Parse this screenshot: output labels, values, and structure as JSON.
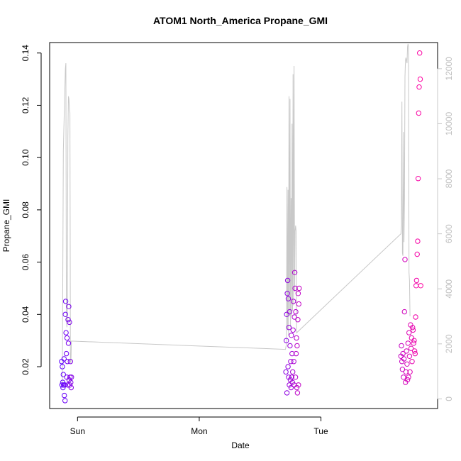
{
  "chart_data": {
    "type": "scatter",
    "title": "ATOM1 North_America Propane_GMI",
    "xlabel": "Date",
    "ylabel": "Propane_GMI",
    "x_ticks": [
      "Sun",
      "Mon",
      "Tue"
    ],
    "ylim": [
      0.004,
      0.144
    ],
    "y_ticks": [
      0.02,
      0.04,
      0.06,
      0.08,
      0.1,
      0.12,
      0.14
    ],
    "y_tick_labels": [
      "0.02",
      "0.04",
      "0.06",
      "0.08",
      "0.10",
      "0.12",
      "0.14"
    ],
    "y2lim": [
      -350,
      12950
    ],
    "y2_ticks": [
      0,
      2000,
      4000,
      6000,
      8000,
      10000,
      12000
    ],
    "y2_tick_labels": [
      "0",
      "2000",
      "4000",
      "6000",
      "8000",
      "10000",
      "12000"
    ],
    "y2_color": "#c8c8c8",
    "grid": false,
    "marker": "open-circle",
    "point_color_start": "#5c00ff",
    "point_color_end": "#ff00a0",
    "x_domain": [
      "Sat 18:30",
      "Tue 23:00"
    ],
    "series": [
      {
        "axis": "left",
        "points": [
          [
            "Sat 20:52",
            0.022
          ],
          [
            "Sat 20:56",
            0.013
          ],
          [
            "Sat 21:00",
            0.02
          ],
          [
            "Sat 21:04",
            0.014
          ],
          [
            "Sat 21:08",
            0.012
          ],
          [
            "Sat 21:12",
            0.017
          ],
          [
            "Sat 21:16",
            0.013
          ],
          [
            "Sat 21:20",
            0.023
          ],
          [
            "Sat 21:24",
            0.009
          ],
          [
            "Sat 21:28",
            0.013
          ],
          [
            "Sat 21:32",
            0.007
          ],
          [
            "Sat 21:36",
            0.04
          ],
          [
            "Sat 21:40",
            0.045
          ],
          [
            "Sat 21:44",
            0.033
          ],
          [
            "Sat 21:48",
            0.025
          ],
          [
            "Sat 21:52",
            0.016
          ],
          [
            "Sat 21:56",
            0.031
          ],
          [
            "Sat 22:00",
            0.022
          ],
          [
            "Sat 22:04",
            0.013
          ],
          [
            "Sat 22:08",
            0.038
          ],
          [
            "Sat 22:12",
            0.029
          ],
          [
            "Sat 22:16",
            0.043
          ],
          [
            "Sat 22:20",
            0.015
          ],
          [
            "Sat 22:24",
            0.037
          ],
          [
            "Sat 22:28",
            0.013
          ],
          [
            "Sat 22:32",
            0.016
          ],
          [
            "Sat 22:36",
            0.022
          ],
          [
            "Sat 22:40",
            0.014
          ],
          [
            "Sat 22:44",
            0.012
          ],
          [
            "Sat 22:48",
            0.016
          ],
          [
            "Mon 17:05",
            0.018
          ],
          [
            "Mon 17:10",
            0.03
          ],
          [
            "Mon 17:14",
            0.04
          ],
          [
            "Mon 17:18",
            0.01
          ],
          [
            "Mon 17:22",
            0.048
          ],
          [
            "Mon 17:26",
            0.053
          ],
          [
            "Mon 17:30",
            0.02
          ],
          [
            "Mon 17:34",
            0.046
          ],
          [
            "Mon 17:38",
            0.016
          ],
          [
            "Mon 17:42",
            0.035
          ],
          [
            "Mon 17:46",
            0.013
          ],
          [
            "Mon 17:50",
            0.041
          ],
          [
            "Mon 17:54",
            0.028
          ],
          [
            "Mon 17:58",
            0.015
          ],
          [
            "Mon 18:02",
            0.022
          ],
          [
            "Mon 18:06",
            0.012
          ],
          [
            "Mon 18:10",
            0.032
          ],
          [
            "Mon 18:14",
            0.016
          ],
          [
            "Mon 18:18",
            0.025
          ],
          [
            "Mon 18:22",
            0.014
          ],
          [
            "Mon 18:26",
            0.018
          ],
          [
            "Mon 18:30",
            0.034
          ],
          [
            "Mon 18:34",
            0.045
          ],
          [
            "Mon 18:38",
            0.022
          ],
          [
            "Mon 18:42",
            0.013
          ],
          [
            "Mon 18:46",
            0.039
          ],
          [
            "Mon 18:50",
            0.056
          ],
          [
            "Mon 18:54",
            0.05
          ],
          [
            "Mon 18:58",
            0.016
          ],
          [
            "Mon 19:02",
            0.041
          ],
          [
            "Mon 19:06",
            0.025
          ],
          [
            "Mon 19:10",
            0.031
          ],
          [
            "Mon 19:14",
            0.012
          ],
          [
            "Mon 19:18",
            0.028
          ],
          [
            "Mon 19:22",
            0.01
          ],
          [
            "Mon 19:26",
            0.038
          ],
          [
            "Mon 19:30",
            0.048
          ],
          [
            "Mon 19:34",
            0.013
          ],
          [
            "Mon 19:38",
            0.044
          ],
          [
            "Mon 19:42",
            0.05
          ],
          [
            "Tue 15:46",
            0.024
          ],
          [
            "Tue 15:52",
            0.028
          ],
          [
            "Tue 15:58",
            0.022
          ],
          [
            "Tue 16:04",
            0.019
          ],
          [
            "Tue 16:10",
            0.025
          ],
          [
            "Tue 16:16",
            0.016
          ],
          [
            "Tue 16:22",
            0.023
          ],
          [
            "Tue 16:28",
            0.041
          ],
          [
            "Tue 16:34",
            0.061
          ],
          [
            "Tue 16:40",
            0.014
          ],
          [
            "Tue 16:46",
            0.018
          ],
          [
            "Tue 16:52",
            0.026
          ],
          [
            "Tue 16:58",
            0.021
          ],
          [
            "Tue 17:04",
            0.015
          ],
          [
            "Tue 17:10",
            0.029
          ],
          [
            "Tue 17:16",
            0.016
          ],
          [
            "Tue 17:22",
            0.033
          ],
          [
            "Tue 17:28",
            0.024
          ],
          [
            "Tue 17:34",
            0.018
          ],
          [
            "Tue 17:40",
            0.036
          ],
          [
            "Tue 17:46",
            0.027
          ],
          [
            "Tue 17:52",
            0.031
          ],
          [
            "Tue 17:58",
            0.022
          ],
          [
            "Tue 18:04",
            0.035
          ],
          [
            "Tue 18:10",
            0.034
          ],
          [
            "Tue 18:16",
            0.029
          ],
          [
            "Tue 18:22",
            0.03
          ],
          [
            "Tue 18:28",
            0.026
          ],
          [
            "Tue 18:34",
            0.025
          ],
          [
            "Tue 18:40",
            0.039
          ],
          [
            "Tue 18:46",
            0.051
          ],
          [
            "Tue 18:52",
            0.053
          ],
          [
            "Tue 18:58",
            0.063
          ],
          [
            "Tue 19:04",
            0.068
          ],
          [
            "Tue 19:10",
            0.092
          ],
          [
            "Tue 19:16",
            0.117
          ],
          [
            "Tue 19:22",
            0.127
          ],
          [
            "Tue 19:28",
            0.14
          ],
          [
            "Tue 19:34",
            0.13
          ],
          [
            "Tue 19:40",
            0.051
          ]
        ]
      },
      {
        "axis": "right",
        "line_color": "#c8c8c8",
        "points": [
          [
            "Sat 20:48",
            500
          ],
          [
            "Sat 21:00",
            600
          ],
          [
            "Sat 21:12",
            9000
          ],
          [
            "Sat 21:24",
            10500
          ],
          [
            "Sat 21:36",
            12000
          ],
          [
            "Sat 21:42",
            12200
          ],
          [
            "Sat 21:48",
            3000
          ],
          [
            "Sat 21:54",
            2600
          ],
          [
            "Sat 22:00",
            2900
          ],
          [
            "Sat 22:06",
            9500
          ],
          [
            "Sat 22:12",
            11000
          ],
          [
            "Sat 22:18",
            10900
          ],
          [
            "Sat 22:24",
            10500
          ],
          [
            "Sat 22:30",
            10400
          ],
          [
            "Sat 22:36",
            1400
          ],
          [
            "Sat 22:42",
            1300
          ],
          [
            "Sat 22:48",
            2100
          ],
          [
            "Mon 17:00",
            1800
          ],
          [
            "Mon 17:12",
            2000
          ],
          [
            "Mon 17:18",
            7700
          ],
          [
            "Mon 17:24",
            2500
          ],
          [
            "Mon 17:30",
            7600
          ],
          [
            "Mon 17:36",
            2300
          ],
          [
            "Mon 17:42",
            11000
          ],
          [
            "Mon 17:48",
            3000
          ],
          [
            "Mon 17:54",
            10900
          ],
          [
            "Mon 18:00",
            2600
          ],
          [
            "Mon 18:06",
            7300
          ],
          [
            "Mon 18:12",
            3000
          ],
          [
            "Mon 18:18",
            10000
          ],
          [
            "Mon 18:24",
            3200
          ],
          [
            "Mon 18:30",
            11800
          ],
          [
            "Mon 18:36",
            3400
          ],
          [
            "Mon 18:42",
            12100
          ],
          [
            "Mon 18:48",
            3900
          ],
          [
            "Mon 18:54",
            6100
          ],
          [
            "Mon 19:00",
            6300
          ],
          [
            "Mon 19:06",
            6100
          ],
          [
            "Mon 19:12",
            2400
          ],
          [
            "Tue 15:46",
            6000
          ],
          [
            "Tue 15:52",
            6300
          ],
          [
            "Tue 15:58",
            10800
          ],
          [
            "Tue 16:04",
            5300
          ],
          [
            "Tue 16:10",
            5200
          ],
          [
            "Tue 16:16",
            9700
          ],
          [
            "Tue 16:22",
            5700
          ],
          [
            "Tue 16:28",
            7300
          ],
          [
            "Tue 16:34",
            11700
          ],
          [
            "Tue 16:40",
            12300
          ],
          [
            "Tue 16:46",
            12400
          ],
          [
            "Tue 16:52",
            12300
          ],
          [
            "Tue 16:58",
            12200
          ],
          [
            "Tue 17:04",
            12800
          ],
          [
            "Tue 17:10",
            12900
          ],
          [
            "Tue 17:16",
            12800
          ],
          [
            "Tue 17:22",
            4600
          ],
          [
            "Tue 17:28",
            4300
          ],
          [
            "Tue 17:34",
            3000
          ]
        ]
      }
    ]
  }
}
